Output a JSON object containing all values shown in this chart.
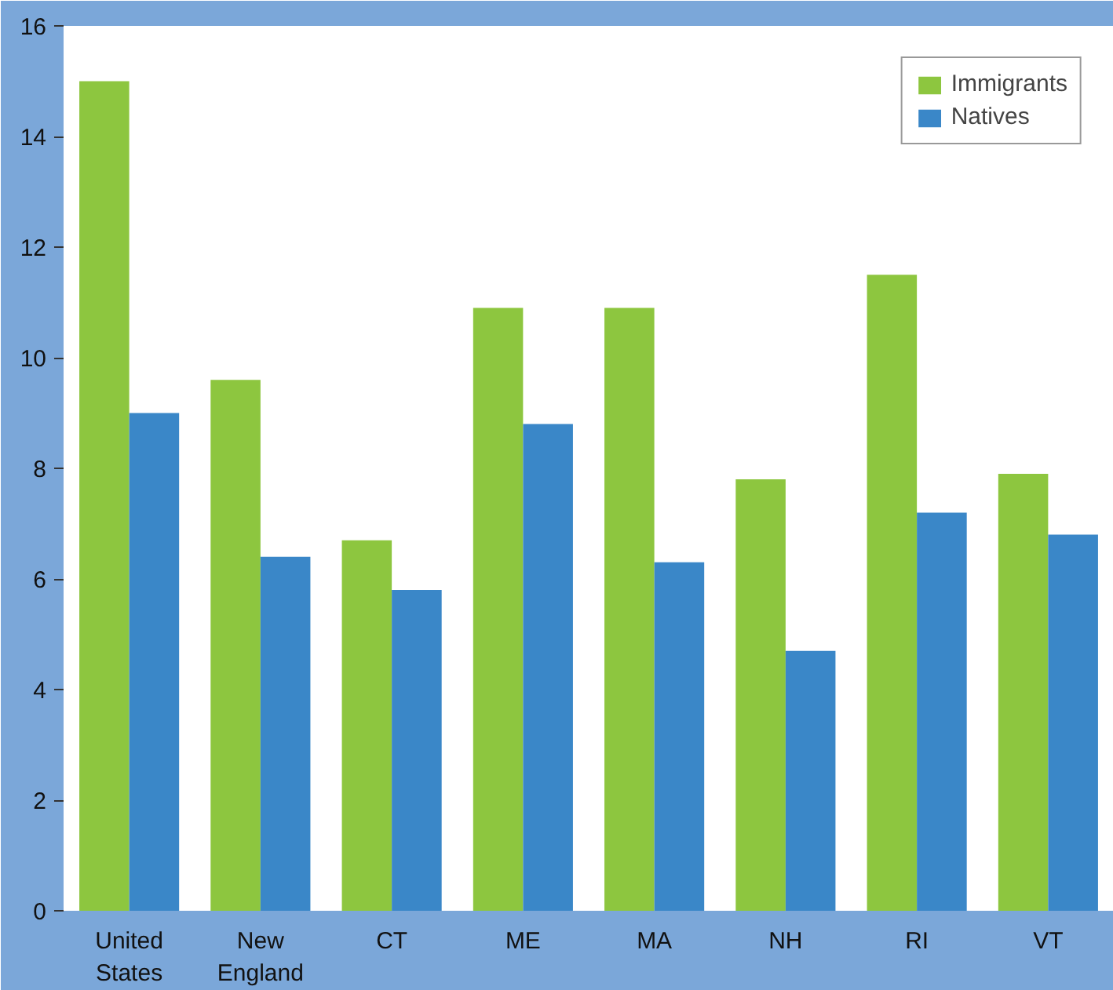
{
  "chart_data": {
    "type": "bar",
    "categories": [
      "United States",
      "New England",
      "CT",
      "ME",
      "MA",
      "NH",
      "RI",
      "VT"
    ],
    "series": [
      {
        "name": "Immigrants",
        "color": "#8dc63f",
        "values": [
          15.0,
          9.6,
          6.7,
          10.9,
          10.9,
          7.8,
          11.5,
          7.9
        ]
      },
      {
        "name": "Natives",
        "color": "#3a87c8",
        "values": [
          9.0,
          6.4,
          5.8,
          8.8,
          6.3,
          4.7,
          7.2,
          6.8
        ]
      }
    ],
    "ylim": [
      0,
      16
    ],
    "yticks": [
      0,
      2,
      4,
      6,
      8,
      10,
      12,
      14,
      16
    ],
    "grid": false,
    "legend": "top right"
  }
}
